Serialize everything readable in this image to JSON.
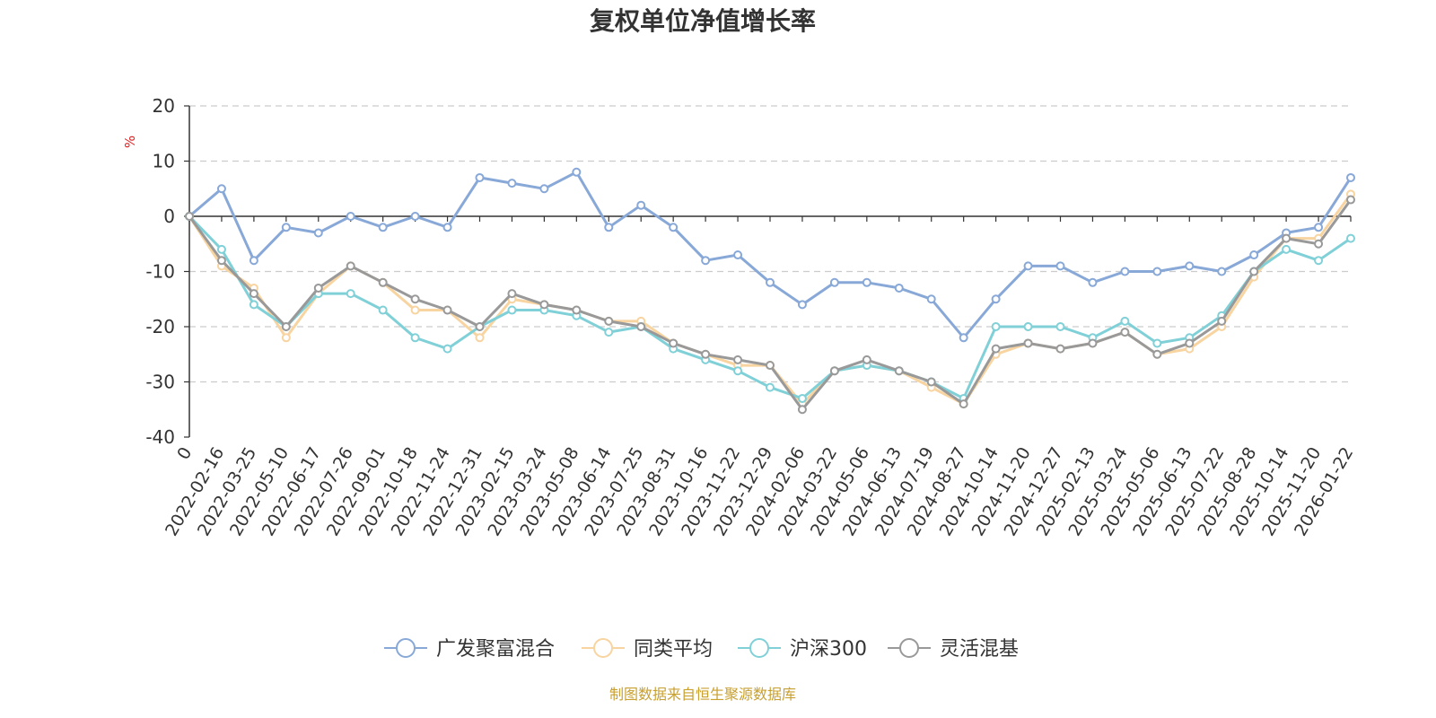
{
  "chart_data": {
    "type": "line",
    "title": "复权单位净值增长率",
    "ylabel": "%",
    "ylim": [
      -40,
      20
    ],
    "yticks": [
      20,
      10,
      0,
      -10,
      -20,
      -30,
      -40
    ],
    "grid": true,
    "legend_position": "bottom-center",
    "categories": [
      "0",
      "2022-02-16",
      "2022-03-25",
      "2022-05-10",
      "2022-06-17",
      "2022-07-26",
      "2022-09-01",
      "2022-10-18",
      "2022-11-24",
      "2022-12-31",
      "2023-02-15",
      "2023-03-24",
      "2023-05-08",
      "2023-06-14",
      "2023-07-25",
      "2023-08-31",
      "2023-10-16",
      "2023-11-22",
      "2023-12-29",
      "2024-02-06",
      "2024-03-22",
      "2024-05-06",
      "2024-06-13",
      "2024-07-19",
      "2024-08-27",
      "2024-10-14",
      "2024-11-20",
      "2024-12-27",
      "2025-02-13",
      "2025-03-24",
      "2025-05-06",
      "2025-06-13",
      "2025-07-22",
      "2025-08-28",
      "2025-10-14",
      "2025-11-20",
      "2026-01-22"
    ],
    "series": [
      {
        "name": "广发聚富混合",
        "color": "#88a8d8",
        "values": [
          0,
          5,
          -8,
          -2,
          -3,
          0,
          -2,
          0,
          -2,
          7,
          6,
          5,
          8,
          -2,
          2,
          -2,
          -8,
          -7,
          -12,
          -16,
          -12,
          -12,
          -13,
          -15,
          -22,
          -15,
          -9,
          -9,
          -12,
          -10,
          -10,
          -9,
          -10,
          -7,
          -3,
          -2,
          7
        ]
      },
      {
        "name": "同类平均",
        "color": "#f8d4a0",
        "values": [
          0,
          -9,
          -13,
          -22,
          -14,
          -9,
          -12,
          -17,
          -17,
          -22,
          -15,
          -16,
          -17,
          -19,
          -19,
          -23,
          -25,
          -27,
          -27,
          -34,
          -28,
          -27,
          -28,
          -31,
          -34,
          -25,
          -23,
          -24,
          -23,
          -21,
          -25,
          -24,
          -20,
          -11,
          -4,
          -4,
          4
        ]
      },
      {
        "name": "沪深300",
        "color": "#80d0d8",
        "values": [
          0,
          -6,
          -16,
          -20,
          -14,
          -14,
          -17,
          -22,
          -24,
          -20,
          -17,
          -17,
          -18,
          -21,
          -20,
          -24,
          -26,
          -28,
          -31,
          -33,
          -28,
          -27,
          -28,
          -30,
          -33,
          -20,
          -20,
          -20,
          -22,
          -19,
          -23,
          -22,
          -18,
          -10,
          -6,
          -8,
          -4
        ]
      },
      {
        "name": "灵活混基",
        "color": "#999999",
        "values": [
          0,
          -8,
          -14,
          -20,
          -13,
          -9,
          -12,
          -15,
          -17,
          -20,
          -14,
          -16,
          -17,
          -19,
          -20,
          -23,
          -25,
          -26,
          -27,
          -35,
          -28,
          -26,
          -28,
          -30,
          -34,
          -24,
          -23,
          -24,
          -23,
          -21,
          -25,
          -23,
          -19,
          -10,
          -4,
          -5,
          3
        ]
      }
    ]
  },
  "source_text": "制图数据来自恒生聚源数据库",
  "colors": {
    "axis": "#333333",
    "grid": "#cccccc",
    "unit": "#e02020",
    "source": "#c8a030"
  }
}
